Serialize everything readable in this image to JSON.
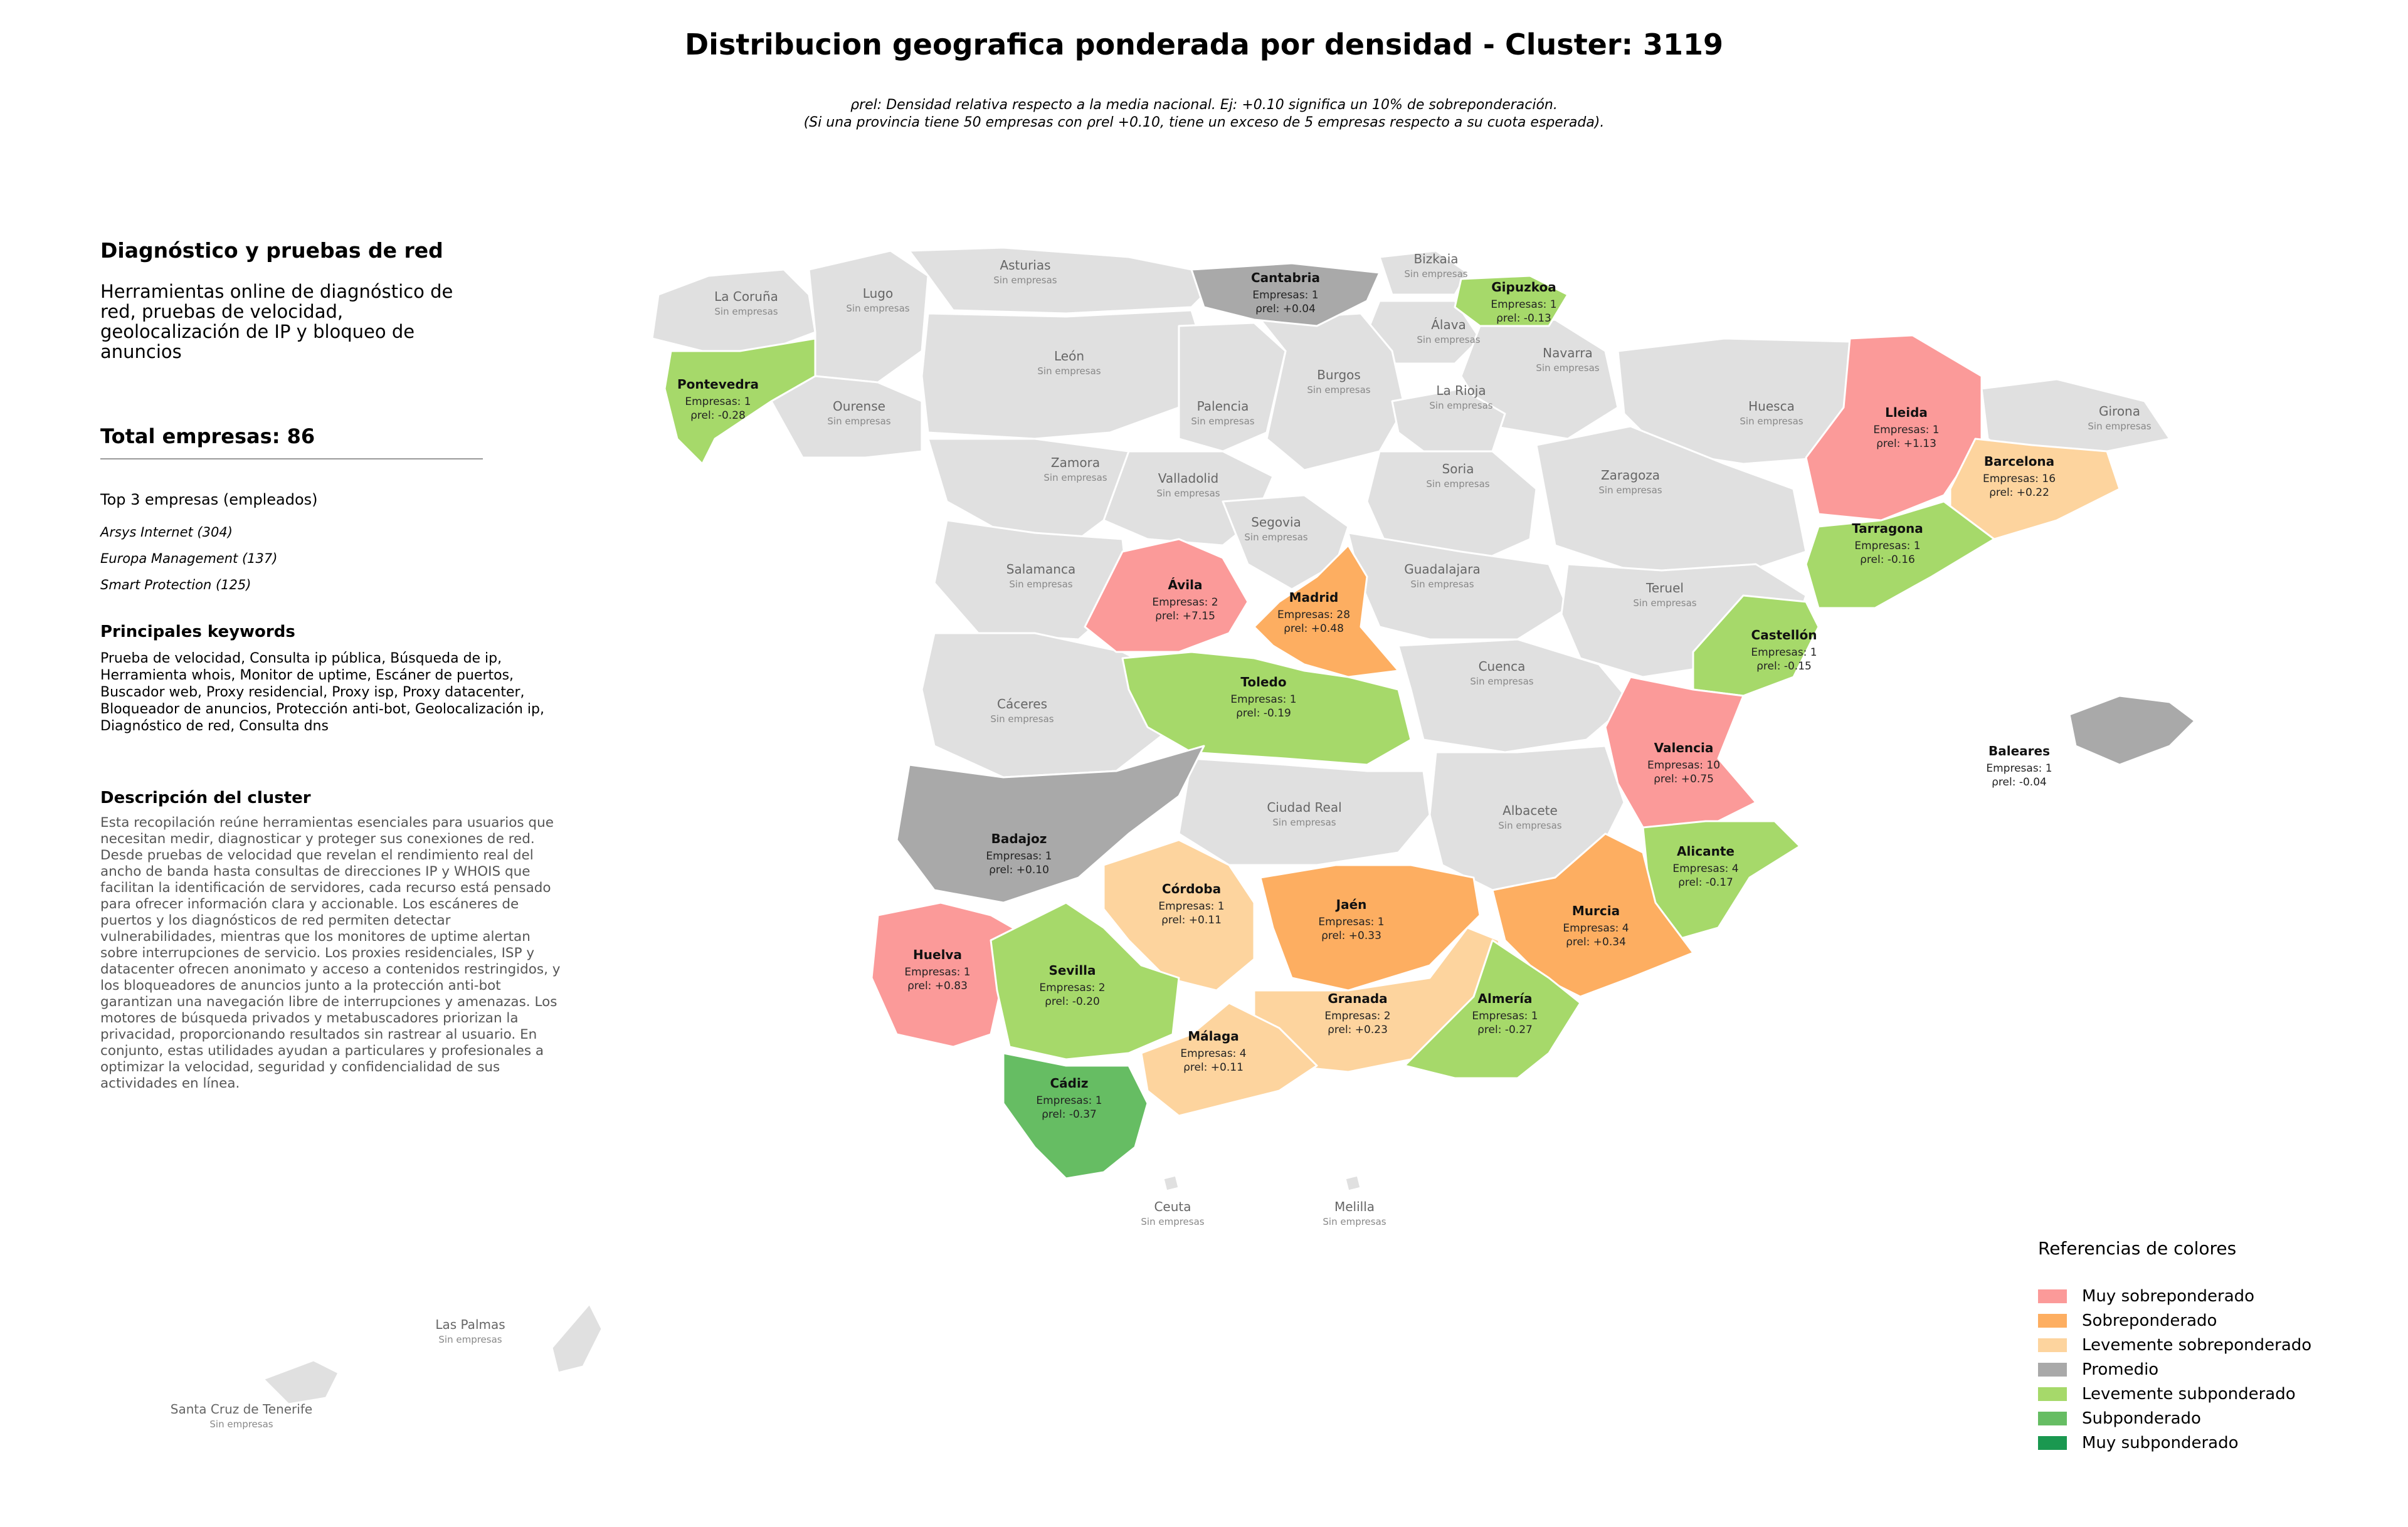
{
  "title": "Distribucion geografica ponderada por densidad - Cluster: 3119",
  "note1": "ρrel: Densidad relativa respecto a la media nacional. Ej: +0.10 significa un 10% de sobreponderación.",
  "note2": "(Si una provincia tiene 50 empresas con ρrel +0.10, tiene un exceso de 5 empresas respecto a su cuota esperada).",
  "sidebar": {
    "heading": "Diagnóstico y pruebas de red",
    "summary": "Herramientas online de diagnóstico de red, pruebas de velocidad, geolocalización de IP y bloqueo de anuncios",
    "total": "Total empresas: 86",
    "top3_heading": "Top 3 empresas (empleados)",
    "top3": [
      "Arsys Internet (304)",
      "Europa Management (137)",
      "Smart Protection (125)"
    ],
    "keywords_heading": "Principales keywords",
    "keywords": "Prueba de velocidad, Consulta ip pública, Búsqueda de ip, Herramienta whois, Monitor de uptime, Escáner de puertos, Buscador web, Proxy residencial, Proxy isp, Proxy datacenter, Bloqueador de anuncios, Protección anti-bot, Geolocalización ip, Diagnóstico de red, Consulta dns",
    "desc_heading": "Descripción del cluster",
    "description": "Esta recopilación reúne herramientas esenciales para usuarios que necesitan medir, diagnosticar y proteger sus conexiones de red. Desde pruebas de velocidad que revelan el rendimiento real del ancho de banda hasta consultas de direcciones IP y WHOIS que facilitan la identificación de servidores, cada recurso está pensado para ofrecer información clara y accionable. Los escáneres de puertos y los diagnósticos de red permiten detectar vulnerabilidades, mientras que los monitores de uptime alertan sobre interrupciones de servicio. Los proxies residenciales, ISP y datacenter ofrecen anonimato y acceso a contenidos restringidos, y los bloqueadores de anuncios junto a la protección anti-bot garantizan una navegación libre de interrupciones y amenazas. Los motores de búsqueda privados y metabuscadores priorizan la privacidad, proporcionando resultados sin rastrear al usuario. En conjunto, estas utilidades ayudan a particulares y profesionales a optimizar la velocidad, seguridad y confidencialidad de sus actividades en línea."
  },
  "colors": {
    "muy_sobre": "#fb9a99",
    "sobre": "#fdae61",
    "lev_sobre": "#fdd49e",
    "promedio": "#a9a9a9",
    "lev_sub": "#a6d96a",
    "sub": "#66bd63",
    "muy_sub": "#1a9850",
    "none": "#e0e0e0"
  },
  "legend": {
    "title": "Referencias de colores",
    "items": [
      {
        "label": "Muy sobreponderado",
        "color": "#fb9a99"
      },
      {
        "label": "Sobreponderado",
        "color": "#fdae61"
      },
      {
        "label": "Levemente sobreponderado",
        "color": "#fdd49e"
      },
      {
        "label": "Promedio",
        "color": "#a9a9a9"
      },
      {
        "label": "Levemente subponderado",
        "color": "#a6d96a"
      },
      {
        "label": "Subponderado",
        "color": "#66bd63"
      },
      {
        "label": "Muy subponderado",
        "color": "#1a9850"
      }
    ]
  },
  "provinces_with_data": [
    {
      "name": "Cantabria",
      "count": "Empresas: 1",
      "rho": "ρrel: +0.04"
    },
    {
      "name": "Gipuzkoa",
      "count": "Empresas: 1",
      "rho": "ρrel: -0.13"
    },
    {
      "name": "Pontevedra",
      "count": "Empresas: 1",
      "rho": "ρrel: -0.28"
    },
    {
      "name": "Lleida",
      "count": "Empresas: 1",
      "rho": "ρrel: +1.13"
    },
    {
      "name": "Barcelona",
      "count": "Empresas: 16",
      "rho": "ρrel: +0.22"
    },
    {
      "name": "Tarragona",
      "count": "Empresas: 1",
      "rho": "ρrel: -0.16"
    },
    {
      "name": "Ávila",
      "count": "Empresas: 2",
      "rho": "ρrel: +7.15"
    },
    {
      "name": "Madrid",
      "count": "Empresas: 28",
      "rho": "ρrel: +0.48"
    },
    {
      "name": "Castellón",
      "count": "Empresas: 1",
      "rho": "ρrel: -0.15"
    },
    {
      "name": "Toledo",
      "count": "Empresas: 1",
      "rho": "ρrel: -0.19"
    },
    {
      "name": "Valencia",
      "count": "Empresas: 10",
      "rho": "ρrel: +0.75"
    },
    {
      "name": "Baleares",
      "count": "Empresas: 1",
      "rho": "ρrel: -0.04"
    },
    {
      "name": "Badajoz",
      "count": "Empresas: 1",
      "rho": "ρrel: +0.10"
    },
    {
      "name": "Alicante",
      "count": "Empresas: 4",
      "rho": "ρrel: -0.17"
    },
    {
      "name": "Córdoba",
      "count": "Empresas: 1",
      "rho": "ρrel: +0.11"
    },
    {
      "name": "Jaén",
      "count": "Empresas: 1",
      "rho": "ρrel: +0.33"
    },
    {
      "name": "Murcia",
      "count": "Empresas: 4",
      "rho": "ρrel: +0.34"
    },
    {
      "name": "Huelva",
      "count": "Empresas: 1",
      "rho": "ρrel: +0.83"
    },
    {
      "name": "Sevilla",
      "count": "Empresas: 2",
      "rho": "ρrel: -0.20"
    },
    {
      "name": "Granada",
      "count": "Empresas: 2",
      "rho": "ρrel: +0.23"
    },
    {
      "name": "Almería",
      "count": "Empresas: 1",
      "rho": "ρrel: -0.27"
    },
    {
      "name": "Málaga",
      "count": "Empresas: 4",
      "rho": "ρrel: +0.11"
    },
    {
      "name": "Cádiz",
      "count": "Empresas: 1",
      "rho": "ρrel: -0.37"
    }
  ],
  "empty_label": "Sin empresas",
  "provinces_without_data": [
    "Asturias",
    "Bizkaia",
    "La Coruña",
    "Lugo",
    "Álava",
    "León",
    "Navarra",
    "Burgos",
    "Huesca",
    "Girona",
    "Ourense",
    "Palencia",
    "La Rioja",
    "Zamora",
    "Soria",
    "Zaragoza",
    "Valladolid",
    "Segovia",
    "Salamanca",
    "Guadalajara",
    "Teruel",
    "Cuenca",
    "Cáceres",
    "Ciudad Real",
    "Albacete",
    "Ceuta",
    "Melilla",
    "Las Palmas",
    "Santa Cruz de Tenerife"
  ]
}
